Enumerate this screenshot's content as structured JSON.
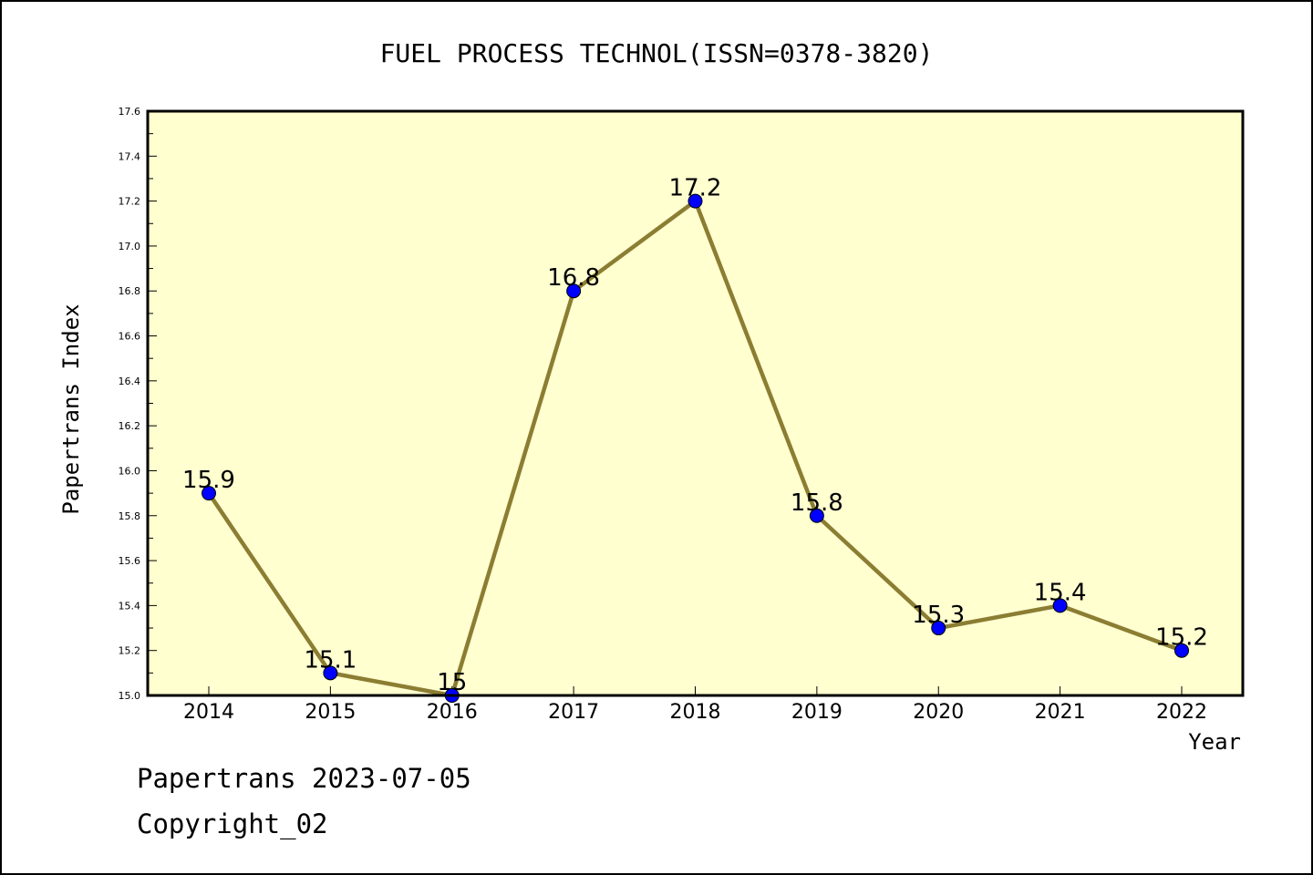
{
  "footer": {
    "line1": "Papertrans 2023-07-05",
    "line2": "Copyright_02"
  },
  "colors": {
    "plot_background": "#ffffd0",
    "line": "#8b7d32",
    "marker": "#0000ff",
    "frame": "#000000"
  },
  "chart_data": {
    "type": "line",
    "title": "FUEL PROCESS TECHNOL(ISSN=0378-3820)",
    "xlabel": "Year",
    "ylabel": "Papertrans Index",
    "categories": [
      "2014",
      "2015",
      "2016",
      "2017",
      "2018",
      "2019",
      "2020",
      "2021",
      "2022"
    ],
    "series": [
      {
        "values": [
          15.9,
          15.1,
          15.0,
          16.8,
          17.2,
          15.8,
          15.3,
          15.4,
          15.2
        ],
        "data_labels": [
          "15.9",
          "15.1",
          "15",
          "16.8",
          "17.2",
          "15.8",
          "15.3",
          "15.4",
          "15.2"
        ]
      }
    ],
    "ylim": [
      15.0,
      17.6
    ],
    "yticks": [
      "15.0",
      "15.2",
      "15.4",
      "15.6",
      "15.8",
      "16.0",
      "16.2",
      "16.4",
      "16.6",
      "16.8",
      "17.0",
      "17.2",
      "17.4",
      "17.6"
    ],
    "grid": false,
    "legend": "none"
  }
}
